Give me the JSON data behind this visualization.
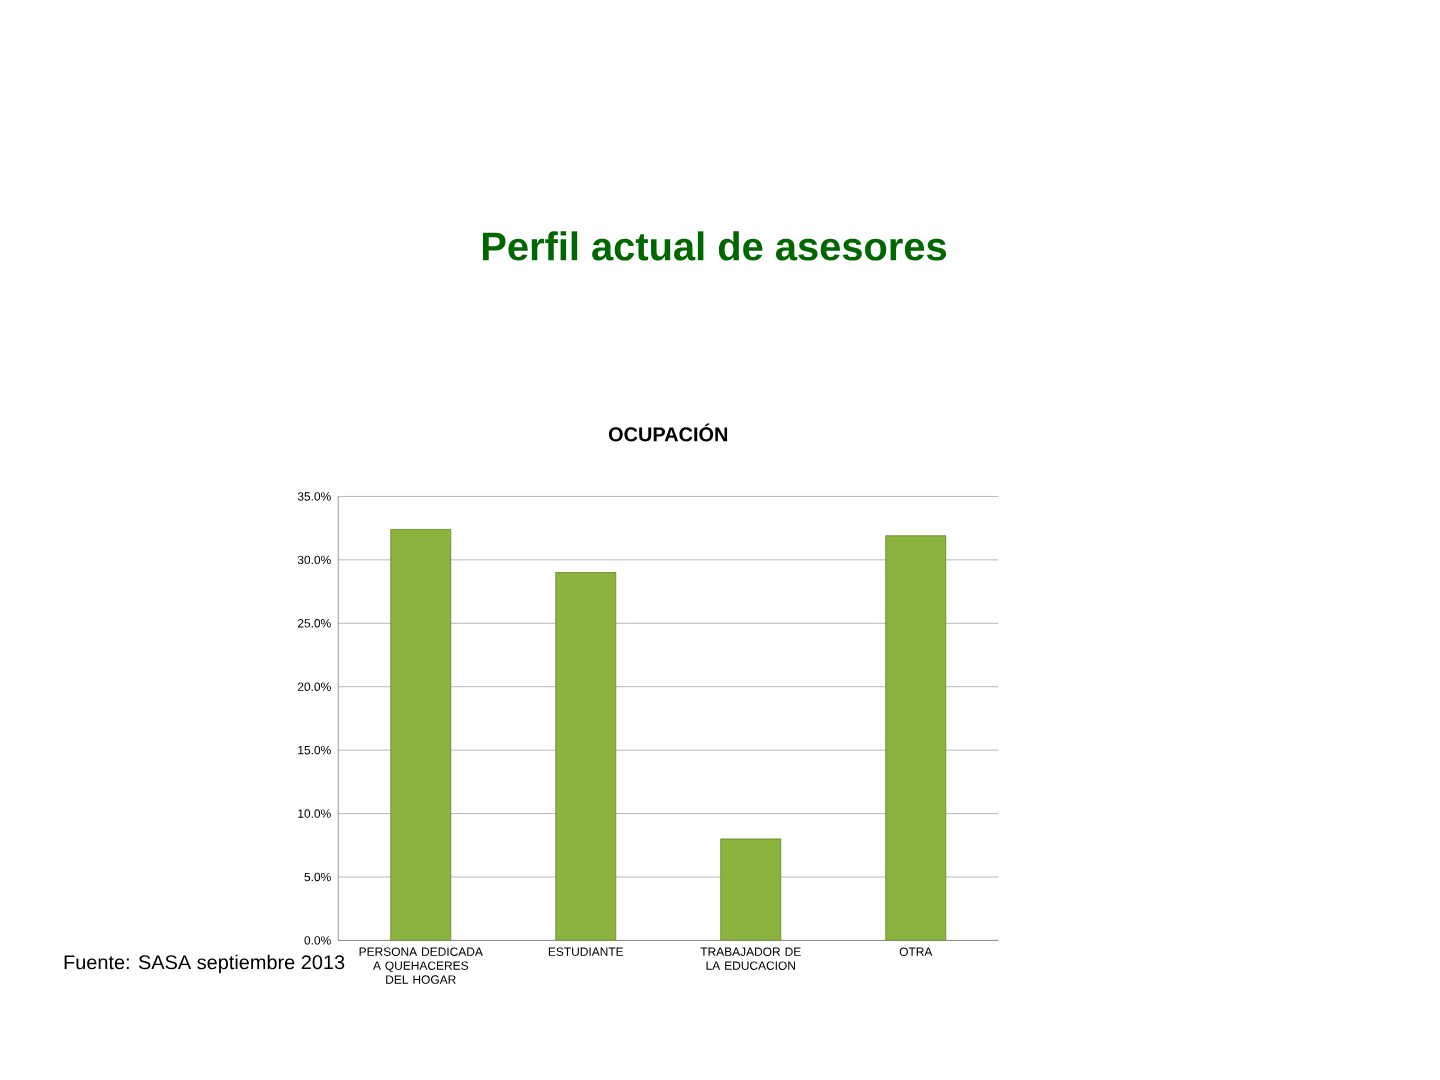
{
  "chart_data": {
    "type": "bar",
    "title": "OCUPACIÓN",
    "categories": [
      "PERSONA DEDICADA A QUEHACERES DEL HOGAR",
      "ESTUDIANTE",
      "TRABAJADOR DE LA EDUCACION",
      "OTRA"
    ],
    "values": [
      32.4,
      29.0,
      8.0,
      31.9
    ],
    "color": "#8db33f",
    "ylim": [
      0,
      35
    ],
    "yticks": [
      {
        "value": 0,
        "label": "0.0%"
      },
      {
        "value": 5,
        "label": "5.0%"
      },
      {
        "value": 10,
        "label": "10.0%"
      },
      {
        "value": 15,
        "label": "15.0%"
      },
      {
        "value": 20,
        "label": "20.0%"
      },
      {
        "value": 25,
        "label": "25.0%"
      },
      {
        "value": 30,
        "label": "30.0%"
      },
      {
        "value": 35,
        "label": "35.0%"
      }
    ],
    "grid": "y",
    "annotations": [
      "Perfil actual de asesores",
      "Fuente: SASA septiembre 2013"
    ]
  }
}
